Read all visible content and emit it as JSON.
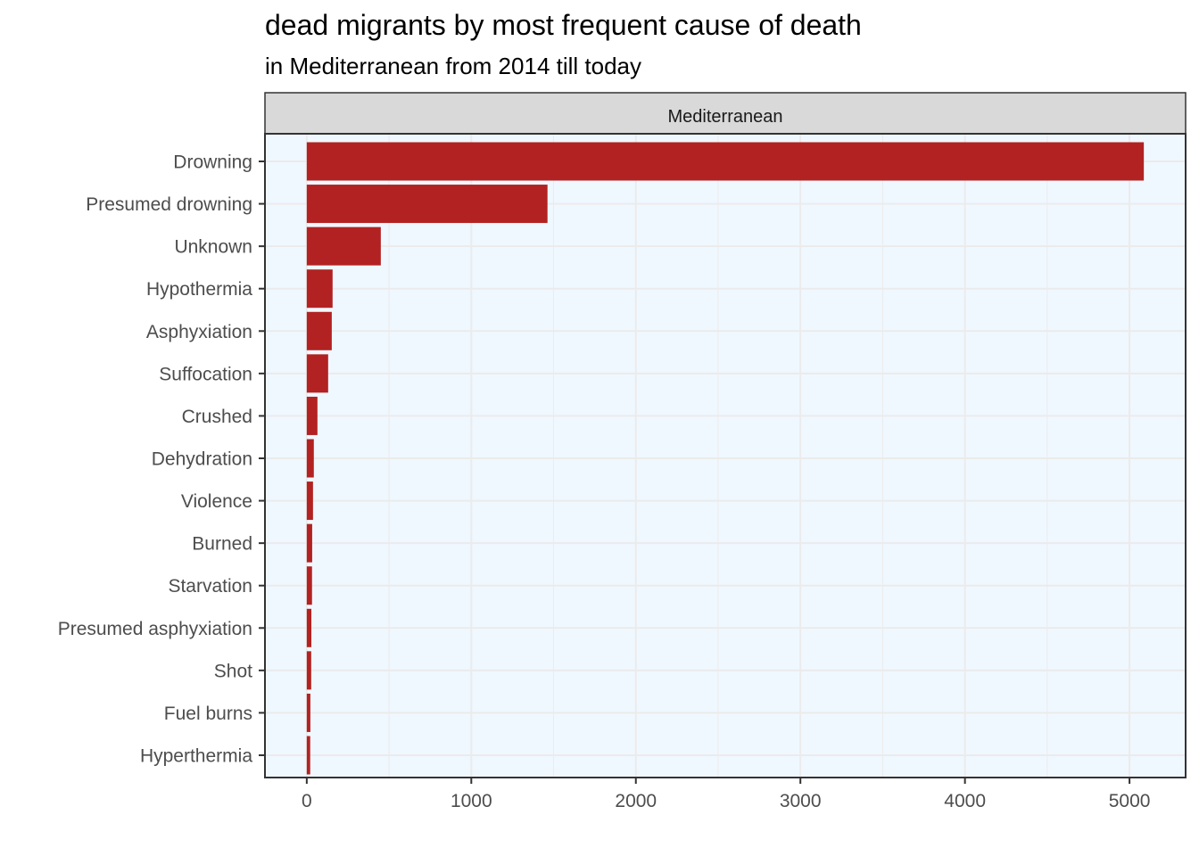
{
  "chart_data": {
    "type": "bar",
    "orientation": "horizontal",
    "title": "dead migrants by most frequent cause of death",
    "subtitle": "in Mediterranean from 2014 till today",
    "facet_label": "Mediterranean",
    "xlabel": "",
    "ylabel": "",
    "categories": [
      "Drowning",
      "Presumed drowning",
      "Unknown",
      "Hypothermia",
      "Asphyxiation",
      "Suffocation",
      "Crushed",
      "Dehydration",
      "Violence",
      "Burned",
      "Starvation",
      "Presumed asphyxiation",
      "Shot",
      "Fuel burns",
      "Hyperthermia"
    ],
    "values": [
      5087,
      1463,
      450,
      157,
      152,
      130,
      65,
      43,
      38,
      33,
      32,
      28,
      27,
      22,
      21
    ],
    "xlim": [
      -254,
      5341
    ],
    "xticks": [
      0,
      1000,
      2000,
      3000,
      4000,
      5000
    ],
    "xtick_labels": [
      "0",
      "1000",
      "2000",
      "3000",
      "4000",
      "5000"
    ],
    "grid": true,
    "legend": "none",
    "colors": {
      "bar": "#B22222",
      "panel_background": "#F0F8FF",
      "grid": "#EBEBEB",
      "strip_background": "#D9D9D9",
      "border": "#333333"
    }
  }
}
